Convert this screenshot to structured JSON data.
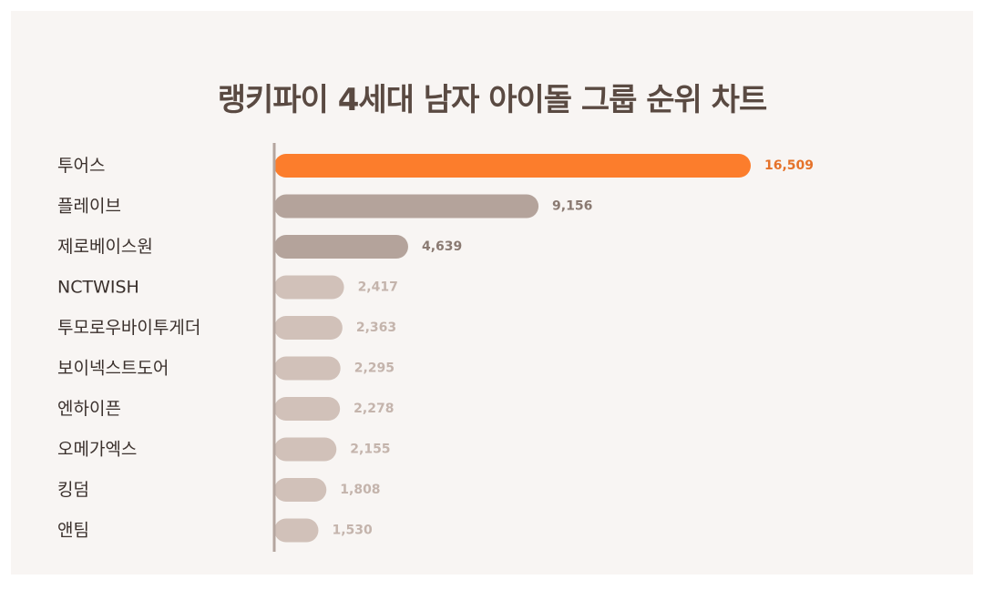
{
  "title": "랭키파이 4세대 남자 아이돌 그룹 순위 차트",
  "colors": {
    "background": "#f8f5f3",
    "top_bar": "#fc7d2c",
    "top_label": "#e5722a",
    "mid_bar": "#b4a39b",
    "mid_label": "#8a7a72",
    "low_bar": "#d1c1b9",
    "low_label": "#c4b4ac",
    "axis": "#b4a59e",
    "title": "#5a4a42",
    "category": "#3a302c"
  },
  "chart_data": {
    "type": "bar",
    "orientation": "horizontal",
    "title": "랭키파이 4세대 남자 아이돌 그룹 순위 차트",
    "categories": [
      "투어스",
      "플레이브",
      "제로베이스원",
      "NCTWISH",
      "투모로우바이투게더",
      "보이넥스트도어",
      "엔하이픈",
      "오메가엑스",
      "킹덤",
      "앤팀"
    ],
    "values": [
      16509,
      9156,
      4639,
      2417,
      2363,
      2295,
      2278,
      2155,
      1808,
      1530
    ],
    "value_labels": [
      "16,509",
      "9,156",
      "4,639",
      "2,417",
      "2,363",
      "2,295",
      "2,278",
      "2,155",
      "1,808",
      "1,530"
    ],
    "xlim": [
      0,
      16509
    ],
    "grid": false,
    "legend": "none"
  }
}
